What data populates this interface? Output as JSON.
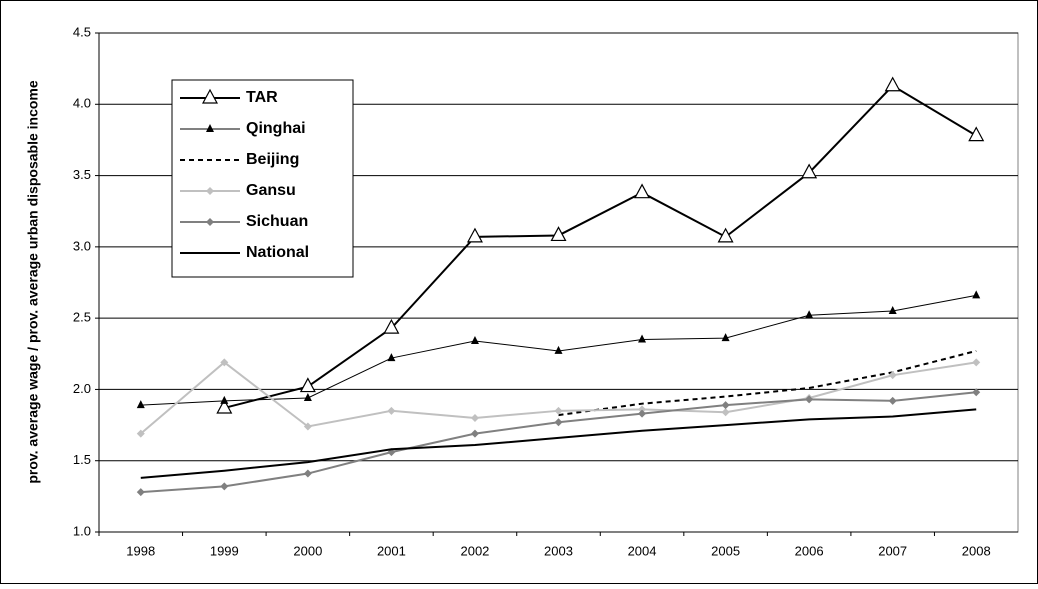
{
  "chart_data": {
    "type": "line",
    "y_label": "prov. average wage / prov. average urban disposable income",
    "categories": [
      "1998",
      "1999",
      "2000",
      "2001",
      "2002",
      "2003",
      "2004",
      "2005",
      "2006",
      "2007",
      "2008"
    ],
    "series": [
      {
        "name": "TAR",
        "color": "#000000",
        "width": 2,
        "marker": "open-triangle",
        "dash": false,
        "values": [
          null,
          1.87,
          2.02,
          2.43,
          3.07,
          3.08,
          3.38,
          3.07,
          3.52,
          4.13,
          3.78
        ]
      },
      {
        "name": "Qinghai",
        "color": "#000000",
        "width": 1,
        "marker": "triangle",
        "dash": false,
        "values": [
          1.89,
          1.92,
          1.94,
          2.22,
          2.34,
          2.27,
          2.35,
          2.36,
          2.52,
          2.55,
          2.66
        ]
      },
      {
        "name": "Beijing",
        "color": "#000000",
        "width": 2,
        "marker": "none",
        "dash": true,
        "values": [
          null,
          null,
          null,
          null,
          null,
          1.82,
          1.9,
          1.95,
          2.01,
          2.12,
          2.27
        ]
      },
      {
        "name": "Gansu",
        "color": "#c0c0c0",
        "width": 2,
        "marker": "diamond",
        "dash": false,
        "values": [
          1.69,
          2.19,
          1.74,
          1.85,
          1.8,
          1.85,
          1.86,
          1.84,
          1.94,
          2.1,
          2.19
        ]
      },
      {
        "name": "Sichuan",
        "color": "#808080",
        "width": 2,
        "marker": "diamond",
        "dash": false,
        "values": [
          1.28,
          1.32,
          1.41,
          1.56,
          1.69,
          1.77,
          1.83,
          1.89,
          1.93,
          1.92,
          1.98
        ]
      },
      {
        "name": "National",
        "color": "#000000",
        "width": 2,
        "marker": "none",
        "dash": false,
        "values": [
          1.38,
          1.43,
          1.49,
          1.58,
          1.61,
          1.66,
          1.71,
          1.75,
          1.79,
          1.81,
          1.86
        ]
      }
    ],
    "ylim": [
      1,
      4.5
    ],
    "yticks": [
      {
        "value": 1,
        "label": "1.0"
      },
      1.5,
      {
        "value": 2,
        "label": "2.0"
      },
      2.5,
      {
        "value": 3,
        "label": "3.0"
      },
      3.5,
      {
        "value": 4,
        "label": "4.0"
      },
      4.5
    ],
    "grid": true,
    "legend": "upper-left"
  }
}
